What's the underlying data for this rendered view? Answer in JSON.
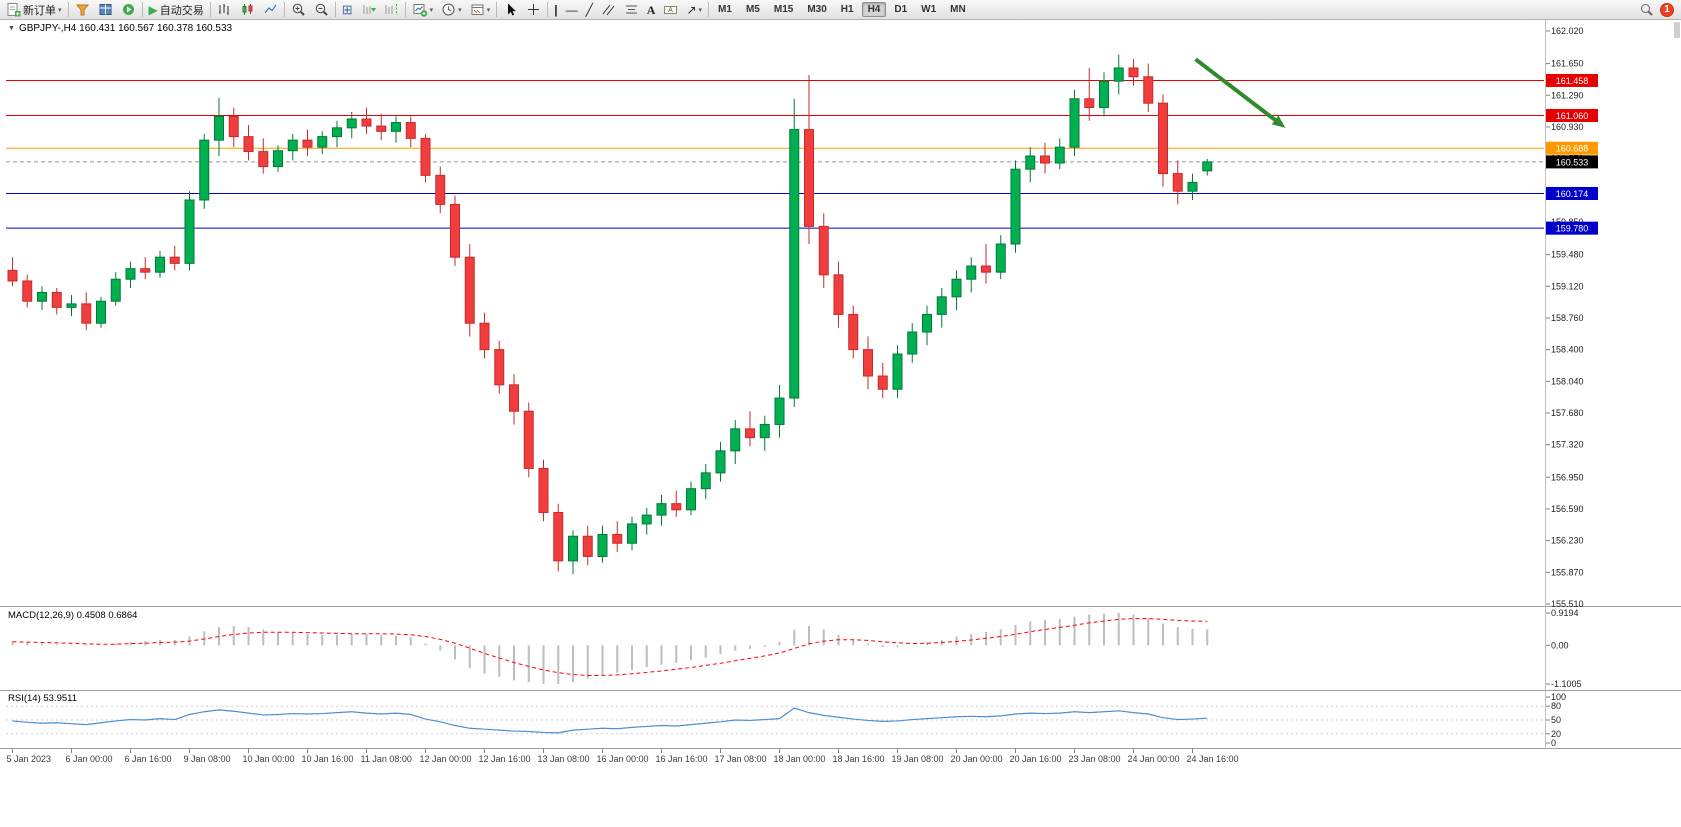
{
  "toolbar": {
    "new_order_label": "新订单",
    "auto_trading_label": "自动交易",
    "timeframes": [
      "M1",
      "M5",
      "M15",
      "M30",
      "H1",
      "H4",
      "D1",
      "W1",
      "MN"
    ],
    "active_timeframe": "H4",
    "notification_badge": "1"
  },
  "chart_header": {
    "collapse_icon": "▼",
    "text": "GBPJPY-,H4 160.431 160.567 160.378 160.533"
  },
  "macd_panel": {
    "title": "MACD(12,26,9) 0.4508 0.6864",
    "y_ticks": [
      "0.9194",
      "0.00",
      "-1.1005"
    ]
  },
  "rsi_panel": {
    "title": "RSI(14) 53.9511",
    "y_ticks": [
      "100",
      "80",
      "50",
      "20",
      "0"
    ],
    "levels": [
      80,
      50,
      20
    ]
  },
  "chart_data": {
    "type": "candlestick",
    "symbol": "GBPJPY-",
    "period": "H4",
    "ohlc_current": {
      "open": 160.431,
      "high": 160.567,
      "low": 160.378,
      "close": 160.533
    },
    "price_range": [
      155.51,
      162.02
    ],
    "y_ticks": [
      "162.020",
      "161.650",
      "161.290",
      "160.930",
      "160.570",
      "160.210",
      "159.850",
      "159.480",
      "159.120",
      "158.760",
      "158.400",
      "158.040",
      "157.680",
      "157.320",
      "156.950",
      "156.590",
      "156.230",
      "155.870",
      "155.510"
    ],
    "colors": {
      "up": "#00b050",
      "up_stroke": "#007a38",
      "down": "#f03e3e",
      "down_stroke": "#c92a2a"
    },
    "price_lines": [
      {
        "price": 161.458,
        "label": "161.458",
        "line_color": "#e60000",
        "label_bg": "#e60000",
        "style": "solid"
      },
      {
        "price": 161.06,
        "label": "161.060",
        "line_color": "#e60000",
        "label_bg": "#e60000",
        "style": "solid"
      },
      {
        "price": 160.688,
        "label": "160.688",
        "line_color": "#ff9900",
        "label_bg": "#ff9900",
        "style": "solid"
      },
      {
        "price": 160.533,
        "label": "160.533",
        "line_color": "#999999",
        "label_bg": "#000000",
        "style": "dashed"
      },
      {
        "price": 160.174,
        "label": "160.174",
        "line_color": "#0000cc",
        "label_bg": "#0000cc",
        "style": "solid"
      },
      {
        "price": 159.78,
        "label": "159.780",
        "line_color": "#0000cc",
        "label_bg": "#0000cc",
        "style": "solid"
      }
    ],
    "annotations": [
      {
        "type": "arrow",
        "color": "#2e8b2e",
        "i1": 80.2,
        "p1": 161.7,
        "i2": 86.3,
        "p2": 160.92
      }
    ],
    "candles": [
      [
        159.3,
        159.45,
        159.12,
        159.18
      ],
      [
        159.18,
        159.25,
        158.88,
        158.95
      ],
      [
        158.95,
        159.12,
        158.85,
        159.05
      ],
      [
        159.05,
        159.1,
        158.8,
        158.88
      ],
      [
        158.88,
        159.02,
        158.78,
        158.92
      ],
      [
        158.92,
        159.05,
        158.62,
        158.7
      ],
      [
        158.7,
        159.0,
        158.65,
        158.95
      ],
      [
        158.95,
        159.28,
        158.9,
        159.2
      ],
      [
        159.2,
        159.4,
        159.1,
        159.32
      ],
      [
        159.32,
        159.45,
        159.2,
        159.28
      ],
      [
        159.28,
        159.52,
        159.22,
        159.45
      ],
      [
        159.45,
        159.58,
        159.3,
        159.38
      ],
      [
        159.38,
        160.2,
        159.3,
        160.1
      ],
      [
        160.1,
        160.85,
        160.0,
        160.78
      ],
      [
        160.78,
        161.26,
        160.6,
        161.05
      ],
      [
        161.05,
        161.15,
        160.7,
        160.82
      ],
      [
        160.82,
        160.95,
        160.55,
        160.65
      ],
      [
        160.65,
        160.8,
        160.4,
        160.48
      ],
      [
        160.48,
        160.72,
        160.42,
        160.66
      ],
      [
        160.66,
        160.85,
        160.55,
        160.78
      ],
      [
        160.78,
        160.9,
        160.6,
        160.7
      ],
      [
        160.7,
        160.88,
        160.62,
        160.82
      ],
      [
        160.82,
        161.0,
        160.7,
        160.92
      ],
      [
        160.92,
        161.1,
        160.8,
        161.02
      ],
      [
        161.02,
        161.15,
        160.85,
        160.94
      ],
      [
        160.94,
        161.08,
        160.78,
        160.88
      ],
      [
        160.88,
        161.05,
        160.75,
        160.98
      ],
      [
        160.98,
        161.05,
        160.7,
        160.8
      ],
      [
        160.8,
        160.85,
        160.3,
        160.38
      ],
      [
        160.38,
        160.48,
        159.95,
        160.05
      ],
      [
        160.05,
        160.15,
        159.35,
        159.45
      ],
      [
        159.45,
        159.6,
        158.55,
        158.7
      ],
      [
        158.7,
        158.82,
        158.3,
        158.4
      ],
      [
        158.4,
        158.5,
        157.9,
        158.0
      ],
      [
        158.0,
        158.12,
        157.55,
        157.7
      ],
      [
        157.7,
        157.8,
        156.95,
        157.05
      ],
      [
        157.05,
        157.15,
        156.45,
        156.55
      ],
      [
        156.55,
        156.65,
        155.88,
        156.0
      ],
      [
        156.0,
        156.35,
        155.85,
        156.28
      ],
      [
        156.28,
        156.4,
        155.95,
        156.05
      ],
      [
        156.05,
        156.4,
        155.98,
        156.3
      ],
      [
        156.3,
        156.45,
        156.1,
        156.2
      ],
      [
        156.2,
        156.5,
        156.12,
        156.42
      ],
      [
        156.42,
        156.6,
        156.3,
        156.52
      ],
      [
        156.52,
        156.75,
        156.4,
        156.65
      ],
      [
        156.65,
        156.8,
        156.5,
        156.58
      ],
      [
        156.58,
        156.9,
        156.52,
        156.82
      ],
      [
        156.82,
        157.1,
        156.7,
        157.0
      ],
      [
        157.0,
        157.35,
        156.9,
        157.25
      ],
      [
        157.25,
        157.6,
        157.1,
        157.5
      ],
      [
        157.5,
        157.7,
        157.3,
        157.4
      ],
      [
        157.4,
        157.65,
        157.25,
        157.55
      ],
      [
        157.55,
        158.0,
        157.4,
        157.85
      ],
      [
        157.85,
        161.25,
        157.75,
        160.9
      ],
      [
        160.9,
        161.52,
        159.6,
        159.8
      ],
      [
        159.8,
        159.95,
        159.1,
        159.25
      ],
      [
        159.25,
        159.4,
        158.65,
        158.8
      ],
      [
        158.8,
        158.9,
        158.3,
        158.4
      ],
      [
        158.4,
        158.55,
        157.95,
        158.1
      ],
      [
        158.1,
        158.25,
        157.85,
        157.95
      ],
      [
        157.95,
        158.45,
        157.85,
        158.35
      ],
      [
        158.35,
        158.7,
        158.25,
        158.6
      ],
      [
        158.6,
        158.9,
        158.45,
        158.8
      ],
      [
        158.8,
        159.1,
        158.65,
        159.0
      ],
      [
        159.0,
        159.3,
        158.85,
        159.2
      ],
      [
        159.2,
        159.45,
        159.05,
        159.35
      ],
      [
        159.35,
        159.6,
        159.15,
        159.28
      ],
      [
        159.28,
        159.7,
        159.2,
        159.6
      ],
      [
        159.6,
        160.55,
        159.5,
        160.45
      ],
      [
        160.45,
        160.7,
        160.3,
        160.6
      ],
      [
        160.6,
        160.75,
        160.4,
        160.52
      ],
      [
        160.52,
        160.8,
        160.45,
        160.7
      ],
      [
        160.7,
        161.35,
        160.6,
        161.25
      ],
      [
        161.25,
        161.6,
        161.0,
        161.15
      ],
      [
        161.15,
        161.55,
        161.05,
        161.45
      ],
      [
        161.45,
        161.75,
        161.3,
        161.6
      ],
      [
        161.6,
        161.7,
        161.4,
        161.5
      ],
      [
        161.5,
        161.65,
        161.1,
        161.2
      ],
      [
        161.2,
        161.3,
        160.25,
        160.4
      ],
      [
        160.4,
        160.55,
        160.05,
        160.2
      ],
      [
        160.2,
        160.4,
        160.1,
        160.3
      ],
      [
        160.431,
        160.567,
        160.378,
        160.533
      ]
    ],
    "time_labels": [
      {
        "i": 0,
        "t": "5 Jan 2023"
      },
      {
        "i": 4,
        "t": "6 Jan 00:00"
      },
      {
        "i": 8,
        "t": "6 Jan 16:00"
      },
      {
        "i": 12,
        "t": "9 Jan 08:00"
      },
      {
        "i": 16,
        "t": "10 Jan 00:00"
      },
      {
        "i": 20,
        "t": "10 Jan 16:00"
      },
      {
        "i": 24,
        "t": "11 Jan 08:00"
      },
      {
        "i": 28,
        "t": "12 Jan 00:00"
      },
      {
        "i": 32,
        "t": "12 Jan 16:00"
      },
      {
        "i": 36,
        "t": "13 Jan 08:00"
      },
      {
        "i": 40,
        "t": "16 Jan 00:00"
      },
      {
        "i": 44,
        "t": "16 Jan 16:00"
      },
      {
        "i": 48,
        "t": "17 Jan 08:00"
      },
      {
        "i": 52,
        "t": "18 Jan 00:00"
      },
      {
        "i": 56,
        "t": "18 Jan 16:00"
      },
      {
        "i": 60,
        "t": "19 Jan 08:00"
      },
      {
        "i": 64,
        "t": "20 Jan 00:00"
      },
      {
        "i": 68,
        "t": "20 Jan 16:00"
      },
      {
        "i": 72,
        "t": "23 Jan 08:00"
      },
      {
        "i": 76,
        "t": "24 Jan 00:00"
      },
      {
        "i": 80,
        "t": "24 Jan 16:00"
      }
    ],
    "macd": {
      "type": "histogram+line",
      "range": [
        -1.1005,
        0.9194
      ],
      "histogram_color": "#bdbdbd",
      "signal_color": "#ff0000",
      "values": [
        0.1,
        0.08,
        0.05,
        0.03,
        0.02,
        -0.02,
        0.0,
        0.05,
        0.1,
        0.12,
        0.15,
        0.15,
        0.25,
        0.4,
        0.52,
        0.55,
        0.52,
        0.45,
        0.38,
        0.35,
        0.32,
        0.3,
        0.3,
        0.32,
        0.33,
        0.3,
        0.28,
        0.22,
        0.05,
        -0.15,
        -0.4,
        -0.65,
        -0.8,
        -0.9,
        -1.0,
        -1.05,
        -1.1,
        -1.1,
        -1.05,
        -0.95,
        -0.85,
        -0.78,
        -0.7,
        -0.62,
        -0.55,
        -0.5,
        -0.42,
        -0.35,
        -0.25,
        -0.15,
        -0.1,
        -0.05,
        0.1,
        0.45,
        0.55,
        0.45,
        0.3,
        0.15,
        0.05,
        -0.05,
        -0.05,
        0.0,
        0.08,
        0.15,
        0.25,
        0.32,
        0.38,
        0.45,
        0.58,
        0.68,
        0.72,
        0.75,
        0.82,
        0.88,
        0.9,
        0.92,
        0.88,
        0.78,
        0.62,
        0.52,
        0.47,
        0.4508
      ],
      "signal": [
        0.1,
        0.09,
        0.08,
        0.07,
        0.06,
        0.04,
        0.03,
        0.03,
        0.05,
        0.06,
        0.08,
        0.09,
        0.12,
        0.18,
        0.25,
        0.31,
        0.35,
        0.37,
        0.37,
        0.37,
        0.36,
        0.35,
        0.34,
        0.33,
        0.33,
        0.33,
        0.32,
        0.3,
        0.25,
        0.17,
        0.06,
        -0.08,
        -0.23,
        -0.36,
        -0.49,
        -0.6,
        -0.7,
        -0.78,
        -0.83,
        -0.86,
        -0.86,
        -0.84,
        -0.81,
        -0.77,
        -0.73,
        -0.68,
        -0.63,
        -0.57,
        -0.51,
        -0.44,
        -0.37,
        -0.3,
        -0.22,
        -0.09,
        0.04,
        0.12,
        0.16,
        0.16,
        0.14,
        0.1,
        0.07,
        0.05,
        0.06,
        0.08,
        0.11,
        0.15,
        0.2,
        0.25,
        0.31,
        0.39,
        0.45,
        0.51,
        0.57,
        0.64,
        0.69,
        0.74,
        0.76,
        0.76,
        0.74,
        0.71,
        0.69,
        0.6864
      ]
    },
    "rsi": {
      "type": "line",
      "period": 14,
      "range": [
        0,
        100
      ],
      "color": "#4a90d9",
      "values": [
        48,
        45,
        43,
        44,
        42,
        40,
        44,
        48,
        51,
        50,
        53,
        51,
        62,
        68,
        72,
        69,
        65,
        61,
        62,
        64,
        63,
        64,
        66,
        68,
        65,
        63,
        65,
        62,
        52,
        46,
        38,
        32,
        30,
        28,
        26,
        25,
        23,
        22,
        28,
        30,
        32,
        31,
        34,
        36,
        38,
        37,
        40,
        43,
        46,
        50,
        49,
        51,
        53,
        76,
        66,
        60,
        56,
        52,
        49,
        47,
        48,
        51,
        53,
        55,
        57,
        58,
        57,
        59,
        63,
        65,
        64,
        65,
        68,
        66,
        68,
        70,
        66,
        63,
        55,
        51,
        52,
        53.9511
      ]
    }
  }
}
